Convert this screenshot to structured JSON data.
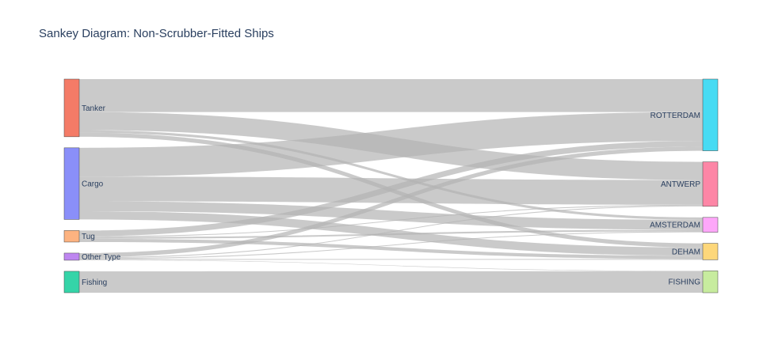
{
  "title": "Sankey Diagram: Non-Scrubber-Fitted Ships",
  "chart_data": {
    "type": "sankey",
    "title": "Sankey Diagram: Non-Scrubber-Fitted Ships",
    "sources": [
      {
        "label": "Tanker",
        "color": "#f47b67"
      },
      {
        "label": "Cargo",
        "color": "#8a8ff9"
      },
      {
        "label": "Tug",
        "color": "#fdb380"
      },
      {
        "label": "Other Type",
        "color": "#be86f0"
      },
      {
        "label": "Fishing",
        "color": "#35d4a8"
      }
    ],
    "targets": [
      {
        "label": "ROTTERDAM",
        "color": "#47dbf3"
      },
      {
        "label": "ANTWERP",
        "color": "#fd86a6"
      },
      {
        "label": "AMSTERDAM",
        "color": "#fda7f9"
      },
      {
        "label": "DEHAM",
        "color": "#fdd77a"
      },
      {
        "label": "FISHING",
        "color": "#c7ec9e"
      }
    ],
    "link_color": "#b4b4b4",
    "links": [
      {
        "source": "Tanker",
        "target": "ROTTERDAM",
        "value": 40
      },
      {
        "source": "Tanker",
        "target": "ANTWERP",
        "value": 22
      },
      {
        "source": "Tanker",
        "target": "AMSTERDAM",
        "value": 3
      },
      {
        "source": "Tanker",
        "target": "DEHAM",
        "value": 5
      },
      {
        "source": "Cargo",
        "target": "ROTTERDAM",
        "value": 35
      },
      {
        "source": "Cargo",
        "target": "ANTWERP",
        "value": 30
      },
      {
        "source": "Cargo",
        "target": "AMSTERDAM",
        "value": 12
      },
      {
        "source": "Cargo",
        "target": "DEHAM",
        "value": 10
      },
      {
        "source": "Tug",
        "target": "ROTTERDAM",
        "value": 7
      },
      {
        "source": "Tug",
        "target": "ANTWERP",
        "value": 1
      },
      {
        "source": "Tug",
        "target": "AMSTERDAM",
        "value": 2
      },
      {
        "source": "Tug",
        "target": "DEHAM",
        "value": 4
      },
      {
        "source": "Other Type",
        "target": "ROTTERDAM",
        "value": 5
      },
      {
        "source": "Other Type",
        "target": "ANTWERP",
        "value": 1
      },
      {
        "source": "Other Type",
        "target": "AMSTERDAM",
        "value": 1
      },
      {
        "source": "Other Type",
        "target": "DEHAM",
        "value": 1
      },
      {
        "source": "Other Type",
        "target": "FISHING",
        "value": 0.5
      },
      {
        "source": "Fishing",
        "target": "FISHING",
        "value": 26
      }
    ]
  }
}
